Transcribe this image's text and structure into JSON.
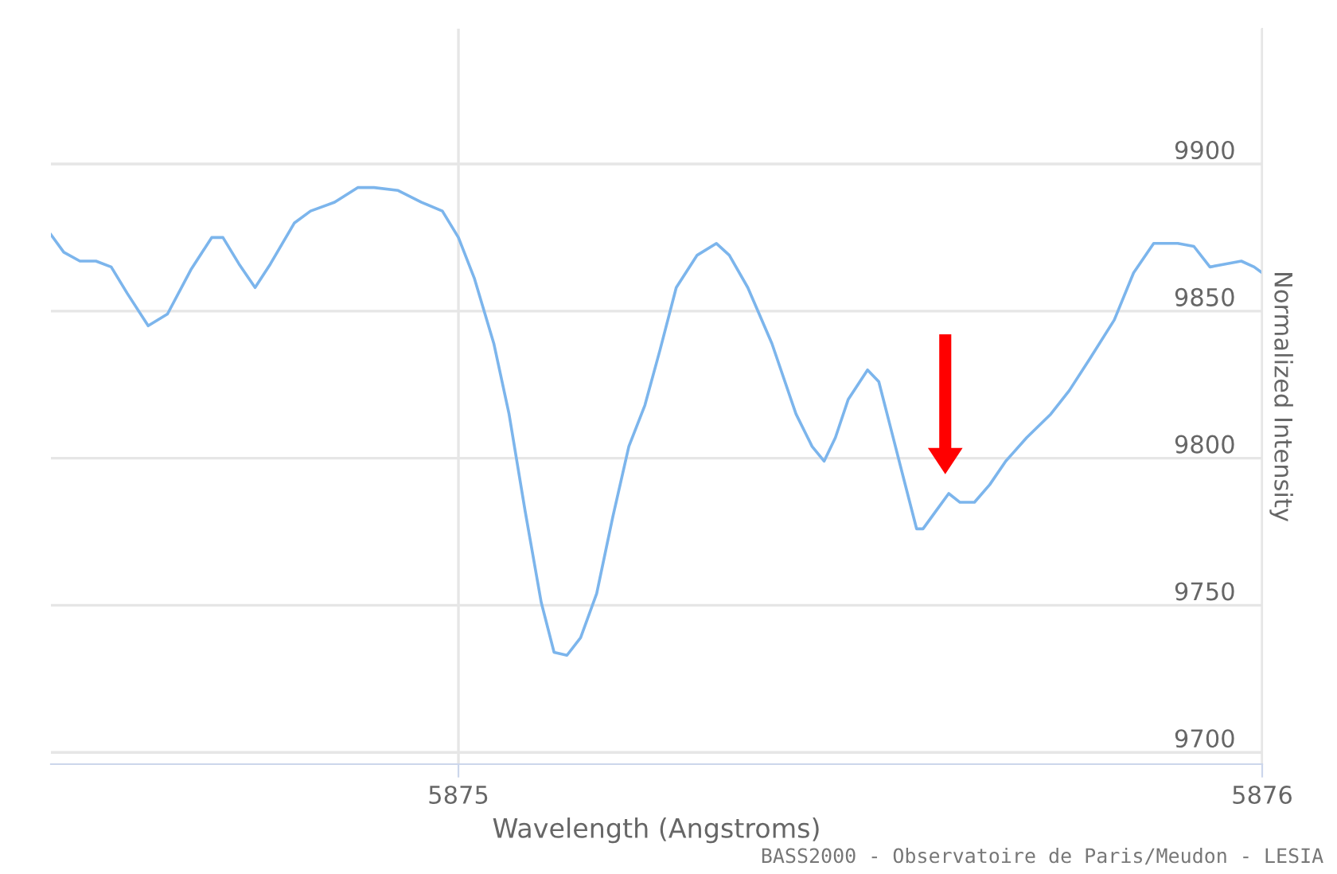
{
  "chart_data": {
    "type": "line",
    "xlabel": "Wavelength (Angstroms)",
    "ylabel": "Normalized Intensity",
    "x": [
      5874.493,
      5874.509,
      5874.529,
      5874.549,
      5874.568,
      5874.588,
      5874.614,
      5874.638,
      5874.667,
      5874.693,
      5874.707,
      5874.727,
      5874.747,
      5874.766,
      5874.796,
      5874.816,
      5874.846,
      5874.875,
      5874.895,
      5874.925,
      5874.954,
      5874.98,
      5875.0,
      5875.02,
      5875.044,
      5875.063,
      5875.083,
      5875.103,
      5875.119,
      5875.135,
      5875.152,
      5875.172,
      5875.192,
      5875.212,
      5875.232,
      5875.251,
      5875.271,
      5875.297,
      5875.321,
      5875.337,
      5875.36,
      5875.39,
      5875.42,
      5875.44,
      5875.455,
      5875.469,
      5875.485,
      5875.509,
      5875.523,
      5875.539,
      5875.554,
      5875.57,
      5875.578,
      5875.594,
      5875.61,
      5875.624,
      5875.642,
      5875.661,
      5875.681,
      5875.707,
      5875.737,
      5875.76,
      5875.786,
      5875.816,
      5875.84,
      5875.865,
      5875.895,
      5875.915,
      5875.935,
      5875.954,
      5875.974,
      5875.99,
      5876.0
    ],
    "series": [
      {
        "color": "#7cb5ec",
        "values": [
          9876,
          9870,
          9867,
          9867,
          9865,
          9856,
          9845,
          9849,
          9864,
          9875,
          9875,
          9866,
          9858,
          9866,
          9880,
          9884,
          9887,
          9892,
          9892,
          9891,
          9887,
          9884,
          9875,
          9861,
          9839,
          9815,
          9782,
          9751,
          9734,
          9733,
          9739,
          9754,
          9780,
          9804,
          9818,
          9837,
          9858,
          9869,
          9873,
          9869,
          9858,
          9839,
          9815,
          9804,
          9799,
          9807,
          9820,
          9830,
          9826,
          9809,
          9793,
          9776,
          9776,
          9782,
          9788,
          9785,
          9785,
          9791,
          9799,
          9807,
          9815,
          9823,
          9834,
          9847,
          9863,
          9873,
          9873,
          9872,
          9865,
          9866,
          9867,
          9865,
          9863
        ]
      }
    ],
    "xlim": [
      5874.493,
      5876
    ],
    "xticks": [
      5875,
      5876
    ],
    "ylim": [
      9696,
      9946
    ],
    "yticks": [
      9700,
      9750,
      9800,
      9850,
      9900
    ],
    "grid": true,
    "marker": "none",
    "line_style": "solid",
    "annotations": [
      "BASS2000 - Observatoire de Paris/Meudon - LESIA"
    ]
  }
}
